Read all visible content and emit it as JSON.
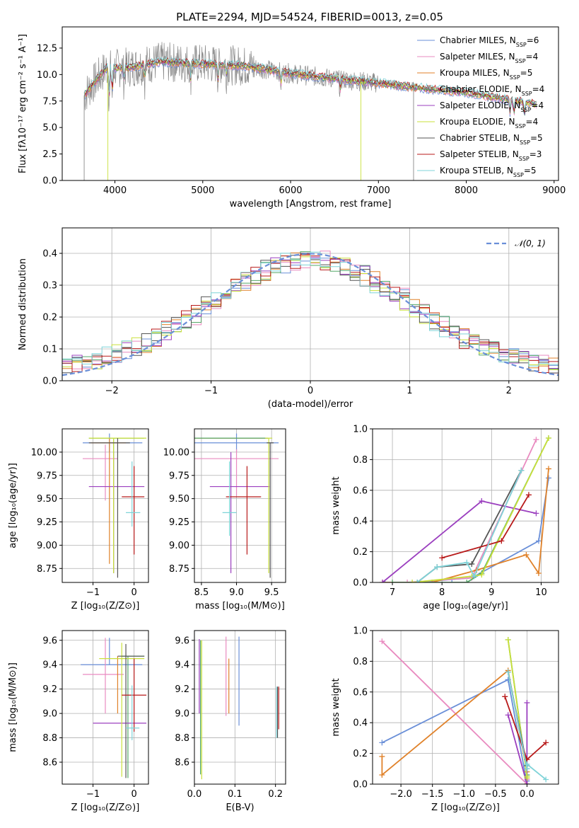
{
  "colors": {
    "chabrier_miles": "#6a8fd8",
    "salpeter_miles": "#e98bc0",
    "kroupa_miles": "#e0822a",
    "chabrier_elodie": "#55a868",
    "salpeter_elodie": "#9b3fbf",
    "kroupa_elodie": "#c9e03a",
    "chabrier_stelib": "#555555",
    "salpeter_stelib": "#b81a1a",
    "kroupa_stelib": "#7fd3d8",
    "data": "#888888"
  },
  "chart_data": [
    {
      "id": "spectrum",
      "type": "line",
      "title": "PLATE=2294, MJD=54524, FIBERID=0013, z=0.05",
      "xlabel": "wavelength [Angstrom, rest frame]",
      "ylabel": "Flux [fλ10⁻¹⁷ erg cm⁻² s⁻¹ A⁻¹]",
      "xlim": [
        3400,
        9050
      ],
      "ylim": [
        0,
        14.5
      ],
      "xticks": [
        4000,
        5000,
        6000,
        7000,
        8000,
        9000
      ],
      "yticks": [
        0.0,
        2.5,
        5.0,
        7.5,
        10.0,
        12.5
      ],
      "grid": false,
      "legend_position": "top-right",
      "legend": [
        "Chabrier MILES, N_SSP=6",
        "Salpeter MILES, N_SSP=4",
        "Kroupa MILES, N_SSP=5",
        "Chabrier ELODIE, N_SSP=4",
        "Salpeter ELODIE, N_SSP=4",
        "Kroupa ELODIE, N_SSP=4",
        "Chabrier STELIB, N_SSP=5",
        "Salpeter STELIB, N_SSP=3",
        "Kroupa STELIB, N_SSP=5"
      ],
      "continuum": {
        "x": [
          3650,
          3700,
          3800,
          3900,
          4000,
          4200,
          4500,
          5000,
          5500,
          6000,
          6500,
          7000,
          7500,
          8000,
          8500,
          8800
        ],
        "y": [
          8.0,
          8.6,
          9.6,
          10.6,
          10.6,
          10.7,
          11.2,
          11.0,
          10.8,
          10.1,
          9.6,
          9.2,
          8.7,
          8.3,
          7.6,
          7.2
        ]
      }
    },
    {
      "id": "residuals",
      "type": "histogram",
      "xlabel": "(data-model)/error",
      "ylabel": "Normed distribution",
      "xlim": [
        -2.5,
        2.5
      ],
      "ylim": [
        0,
        0.48
      ],
      "xticks": [
        -2,
        -1,
        0,
        1,
        2
      ],
      "yticks": [
        0.0,
        0.1,
        0.2,
        0.3,
        0.4
      ],
      "grid": true,
      "legend_position": "top-right",
      "legend": [
        "𝒩(0, 1)"
      ],
      "bin_width": 0.1
    },
    {
      "id": "age_vs_Z",
      "type": "errorbar",
      "xlabel": "Z [log₁₀(Z/Z⊙)]",
      "ylabel": "age  [log₁₀(age/yr)]",
      "xlim": [
        -1.75,
        0.35
      ],
      "ylim": [
        8.6,
        10.25
      ],
      "xticks": [
        -1,
        0
      ],
      "yticks": [
        8.75,
        9.0,
        9.25,
        9.5,
        9.75,
        10.0
      ],
      "grid": true,
      "points": [
        {
          "x": -0.6,
          "y": 10.1,
          "xerr": [
            0.65,
            0.8
          ],
          "yerr": [
            0.1,
            0.1
          ],
          "c": "chabrier_miles"
        },
        {
          "x": -0.7,
          "y": 9.93,
          "xerr": [
            0.55,
            0.3
          ],
          "yerr": [
            0.45,
            0.15
          ],
          "c": "salpeter_miles"
        },
        {
          "x": -0.6,
          "y": 10.1,
          "xerr": [
            0.45,
            0.4
          ],
          "yerr": [
            1.3,
            0.05
          ],
          "c": "kroupa_miles"
        },
        {
          "x": -0.5,
          "y": 10.15,
          "xerr": [
            0.6,
            0.75
          ],
          "yerr": [
            1.45,
            0.0
          ],
          "c": "chabrier_elodie"
        },
        {
          "x": -0.5,
          "y": 9.63,
          "xerr": [
            0.6,
            0.75
          ],
          "yerr": [
            0.93,
            0.37
          ],
          "c": "salpeter_elodie"
        },
        {
          "x": -0.5,
          "y": 10.15,
          "xerr": [
            0.6,
            0.8
          ],
          "yerr": [
            1.45,
            0.0
          ],
          "c": "kroupa_elodie"
        },
        {
          "x": -0.4,
          "y": 10.1,
          "xerr": [
            0.7,
            0.3
          ],
          "yerr": [
            1.45,
            0.05
          ],
          "c": "chabrier_stelib"
        },
        {
          "x": 0.0,
          "y": 9.52,
          "xerr": [
            0.3,
            0.25
          ],
          "yerr": [
            0.62,
            0.33
          ],
          "c": "salpeter_stelib"
        },
        {
          "x": -0.05,
          "y": 9.35,
          "xerr": [
            0.15,
            0.2
          ],
          "yerr": [
            0.15,
            0.55
          ],
          "c": "kroupa_stelib"
        }
      ]
    },
    {
      "id": "age_vs_mass",
      "type": "errorbar",
      "xlabel": "mass [log₁₀(M/M⊙)]",
      "ylabel": "",
      "xlim": [
        8.4,
        9.7
      ],
      "ylim": [
        8.6,
        10.25
      ],
      "xticks": [
        8.5,
        9.0,
        9.5
      ],
      "yticks": [
        8.75,
        9.0,
        9.25,
        9.5,
        9.75,
        10.0
      ],
      "grid": true,
      "points": [
        {
          "x": 9.0,
          "y": 10.1,
          "xerr": [
            0.6,
            0.6
          ],
          "yerr": [
            0.1,
            0.1
          ],
          "c": "chabrier_miles"
        },
        {
          "x": 9.0,
          "y": 9.93,
          "xerr": [
            0.7,
            0.6
          ],
          "yerr": [
            0.4,
            0.1
          ],
          "c": "salpeter_miles"
        },
        {
          "x": 9.0,
          "y": 10.15,
          "xerr": [
            0.6,
            0.45
          ],
          "yerr": [
            0.0,
            0.0
          ],
          "c": "kroupa_miles"
        },
        {
          "x": 9.0,
          "y": 10.15,
          "xerr": [
            0.6,
            0.45
          ],
          "yerr": [
            0.0,
            0.0
          ],
          "c": "chabrier_elodie"
        },
        {
          "x": 8.92,
          "y": 9.63,
          "xerr": [
            0.3,
            0.55
          ],
          "yerr": [
            0.93,
            0.37
          ],
          "c": "salpeter_elodie"
        },
        {
          "x": 9.46,
          "y": 10.15,
          "xerr": [
            0.05,
            0.05
          ],
          "yerr": [
            1.45,
            0.0
          ],
          "c": "kroupa_elodie"
        },
        {
          "x": 9.48,
          "y": 10.1,
          "xerr": [
            0.05,
            0.05
          ],
          "yerr": [
            1.45,
            0.0
          ],
          "c": "chabrier_stelib"
        },
        {
          "x": 9.15,
          "y": 9.52,
          "xerr": [
            0.3,
            0.2
          ],
          "yerr": [
            0.62,
            0.33
          ],
          "c": "salpeter_stelib"
        },
        {
          "x": 8.9,
          "y": 9.35,
          "xerr": [
            0.1,
            0.1
          ],
          "yerr": [
            0.25,
            0.55
          ],
          "c": "kroupa_stelib"
        }
      ]
    },
    {
      "id": "massweight_vs_age",
      "type": "line",
      "xlabel": "age  [log₁₀(age/yr)]",
      "ylabel": "mass weight",
      "xlim": [
        6.6,
        10.35
      ],
      "ylim": [
        0.0,
        1.0
      ],
      "xticks": [
        7,
        8,
        9,
        10
      ],
      "yticks": [
        0.0,
        0.2,
        0.4,
        0.6,
        0.8,
        1.0
      ],
      "grid": true,
      "series": [
        {
          "c": "chabrier_miles",
          "x": [
            6.85,
            7.5,
            8.2,
            8.6,
            9.95,
            10.15
          ],
          "y": [
            0.0,
            0.0,
            0.02,
            0.03,
            0.27,
            0.68
          ]
        },
        {
          "c": "salpeter_miles",
          "x": [
            7.3,
            8.6,
            9.9
          ],
          "y": [
            0.0,
            0.03,
            0.93
          ]
        },
        {
          "c": "kroupa_miles",
          "x": [
            6.8,
            7.8,
            8.7,
            9.7,
            9.95,
            10.15
          ],
          "y": [
            0.0,
            0.0,
            0.08,
            0.18,
            0.06,
            0.74
          ]
        },
        {
          "c": "chabrier_elodie",
          "x": [
            7.0,
            8.5,
            8.8,
            10.15
          ],
          "y": [
            0.0,
            0.0,
            0.06,
            0.94
          ]
        },
        {
          "c": "salpeter_elodie",
          "x": [
            6.8,
            8.8,
            9.9
          ],
          "y": [
            0.0,
            0.53,
            0.45
          ]
        },
        {
          "c": "kroupa_elodie",
          "x": [
            7.4,
            8.6,
            8.8,
            10.15
          ],
          "y": [
            0.0,
            0.04,
            0.05,
            0.94
          ]
        },
        {
          "c": "chabrier_stelib",
          "x": [
            7.5,
            7.9,
            8.6,
            9.6
          ],
          "y": [
            0.0,
            0.1,
            0.12,
            0.73
          ]
        },
        {
          "c": "salpeter_stelib",
          "x": [
            8.0,
            9.2,
            9.75
          ],
          "y": [
            0.16,
            0.27,
            0.57
          ]
        },
        {
          "c": "kroupa_stelib",
          "x": [
            7.5,
            7.9,
            8.5,
            8.65,
            9.6
          ],
          "y": [
            0.0,
            0.1,
            0.13,
            0.04,
            0.73
          ]
        }
      ]
    },
    {
      "id": "mass_vs_Z",
      "type": "errorbar",
      "xlabel": "Z [log₁₀(Z/Z⊙)]",
      "ylabel": "mass [log₁₀(M/M⊙)]",
      "xlim": [
        -1.75,
        0.35
      ],
      "ylim": [
        8.42,
        9.68
      ],
      "xticks": [
        -1,
        0
      ],
      "yticks": [
        8.6,
        8.8,
        9.0,
        9.2,
        9.4,
        9.6
      ],
      "grid": true,
      "points": [
        {
          "x": -0.6,
          "y": 9.4,
          "xerr": [
            0.7,
            0.8
          ],
          "yerr": [
            0.0,
            0.22
          ],
          "c": "chabrier_miles"
        },
        {
          "x": -0.7,
          "y": 9.32,
          "xerr": [
            0.55,
            0.45
          ],
          "yerr": [
            0.32,
            0.3
          ],
          "c": "salpeter_miles"
        },
        {
          "x": -0.4,
          "y": 9.47,
          "xerr": [
            0.0,
            0.0
          ],
          "yerr": [
            0.47,
            0.0
          ],
          "c": "kroupa_miles"
        },
        {
          "x": -0.15,
          "y": 9.47,
          "xerr": [
            0.15,
            0.4
          ],
          "yerr": [
            1.0,
            0.0
          ],
          "c": "chabrier_elodie"
        },
        {
          "x": -0.4,
          "y": 8.92,
          "xerr": [
            0.6,
            0.7
          ],
          "yerr": [
            0.0,
            0.0
          ],
          "c": "salpeter_elodie"
        },
        {
          "x": -0.3,
          "y": 9.45,
          "xerr": [
            0.55,
            0.55
          ],
          "yerr": [
            0.97,
            0.13
          ],
          "c": "kroupa_elodie"
        },
        {
          "x": -0.2,
          "y": 9.47,
          "xerr": [
            0.2,
            0.45
          ],
          "yerr": [
            1.0,
            0.1
          ],
          "c": "chabrier_stelib"
        },
        {
          "x": 0.0,
          "y": 9.15,
          "xerr": [
            0.3,
            0.3
          ],
          "yerr": [
            0.3,
            0.3
          ],
          "c": "salpeter_stelib"
        },
        {
          "x": -0.05,
          "y": 8.88,
          "xerr": [
            0.15,
            0.18
          ],
          "yerr": [
            0.1,
            0.35
          ],
          "c": "kroupa_stelib"
        }
      ]
    },
    {
      "id": "mass_vs_ebv",
      "type": "errorbar",
      "xlabel": "E(B-V)",
      "ylabel": "",
      "xlim": [
        0.0,
        0.225
      ],
      "ylim": [
        8.42,
        9.68
      ],
      "xticks": [
        0.0,
        0.1,
        0.2
      ],
      "yticks": [
        8.6,
        8.8,
        9.0,
        9.2,
        9.4,
        9.6
      ],
      "grid": true,
      "points": [
        {
          "x": 0.11,
          "y": 9.25,
          "xerr": [
            0.0,
            0.0
          ],
          "yerr": [
            0.35,
            0.38
          ],
          "c": "chabrier_miles"
        },
        {
          "x": 0.078,
          "y": 9.3,
          "xerr": [
            0.0,
            0.0
          ],
          "yerr": [
            0.32,
            0.33
          ],
          "c": "salpeter_miles"
        },
        {
          "x": 0.085,
          "y": 9.2,
          "xerr": [
            0.0,
            0.0
          ],
          "yerr": [
            0.2,
            0.25
          ],
          "c": "kroupa_miles"
        },
        {
          "x": 0.015,
          "y": 9.3,
          "xerr": [
            0.0,
            0.0
          ],
          "yerr": [
            0.8,
            0.3
          ],
          "c": "chabrier_elodie"
        },
        {
          "x": 0.012,
          "y": 9.3,
          "xerr": [
            0.0,
            0.0
          ],
          "yerr": [
            0.3,
            0.31
          ],
          "c": "salpeter_elodie"
        },
        {
          "x": 0.018,
          "y": 9.2,
          "xerr": [
            0.0,
            0.0
          ],
          "yerr": [
            0.74,
            0.4
          ],
          "c": "kroupa_elodie"
        },
        {
          "x": 0.205,
          "y": 9.0,
          "xerr": [
            0.0,
            0.0
          ],
          "yerr": [
            0.2,
            0.22
          ],
          "c": "chabrier_stelib"
        },
        {
          "x": 0.208,
          "y": 9.05,
          "xerr": [
            0.0,
            0.0
          ],
          "yerr": [
            0.18,
            0.17
          ],
          "c": "salpeter_stelib"
        },
        {
          "x": 0.203,
          "y": 9.0,
          "xerr": [
            0.0,
            0.0
          ],
          "yerr": [
            0.2,
            0.22
          ],
          "c": "kroupa_stelib"
        }
      ]
    },
    {
      "id": "massweight_vs_Z",
      "type": "line",
      "xlabel": "Z [log₁₀(Z/Z⊙)]",
      "ylabel": "mass weight",
      "xlim": [
        -2.45,
        0.5
      ],
      "ylim": [
        0.0,
        1.0
      ],
      "xticks": [
        -2.0,
        -1.5,
        -1.0,
        -0.5,
        0.0
      ],
      "yticks": [
        0.0,
        0.2,
        0.4,
        0.6,
        0.8,
        1.0
      ],
      "grid": true,
      "series": [
        {
          "c": "chabrier_miles",
          "x": [
            -2.3,
            -0.3,
            0.0,
            0.0,
            0.0
          ],
          "y": [
            0.27,
            0.68,
            0.0,
            0.02,
            0.03
          ]
        },
        {
          "c": "salpeter_miles",
          "x": [
            -2.3,
            0.0,
            0.0
          ],
          "y": [
            0.93,
            0.0,
            0.03
          ]
        },
        {
          "c": "kroupa_miles",
          "x": [
            -2.3,
            -2.3,
            -0.3,
            0.0,
            0.0
          ],
          "y": [
            0.18,
            0.06,
            0.74,
            0.08,
            0.0
          ]
        },
        {
          "c": "chabrier_elodie",
          "x": [
            -0.3,
            0.0,
            0.0
          ],
          "y": [
            0.94,
            0.06,
            0.0
          ]
        },
        {
          "c": "salpeter_elodie",
          "x": [
            -0.3,
            0.0,
            0.0
          ],
          "y": [
            0.45,
            0.0,
            0.53
          ]
        },
        {
          "c": "kroupa_elodie",
          "x": [
            -0.3,
            0.0,
            0.0
          ],
          "y": [
            0.94,
            0.05,
            0.04
          ]
        },
        {
          "c": "chabrier_stelib",
          "x": [
            -0.3,
            0.0,
            0.0
          ],
          "y": [
            0.73,
            0.12,
            0.1
          ]
        },
        {
          "c": "salpeter_stelib",
          "x": [
            -0.35,
            0.0,
            0.3
          ],
          "y": [
            0.57,
            0.16,
            0.27
          ]
        },
        {
          "c": "kroupa_stelib",
          "x": [
            -0.3,
            0.0,
            0.0,
            0.3
          ],
          "y": [
            0.73,
            0.1,
            0.13,
            0.03
          ]
        }
      ]
    }
  ]
}
